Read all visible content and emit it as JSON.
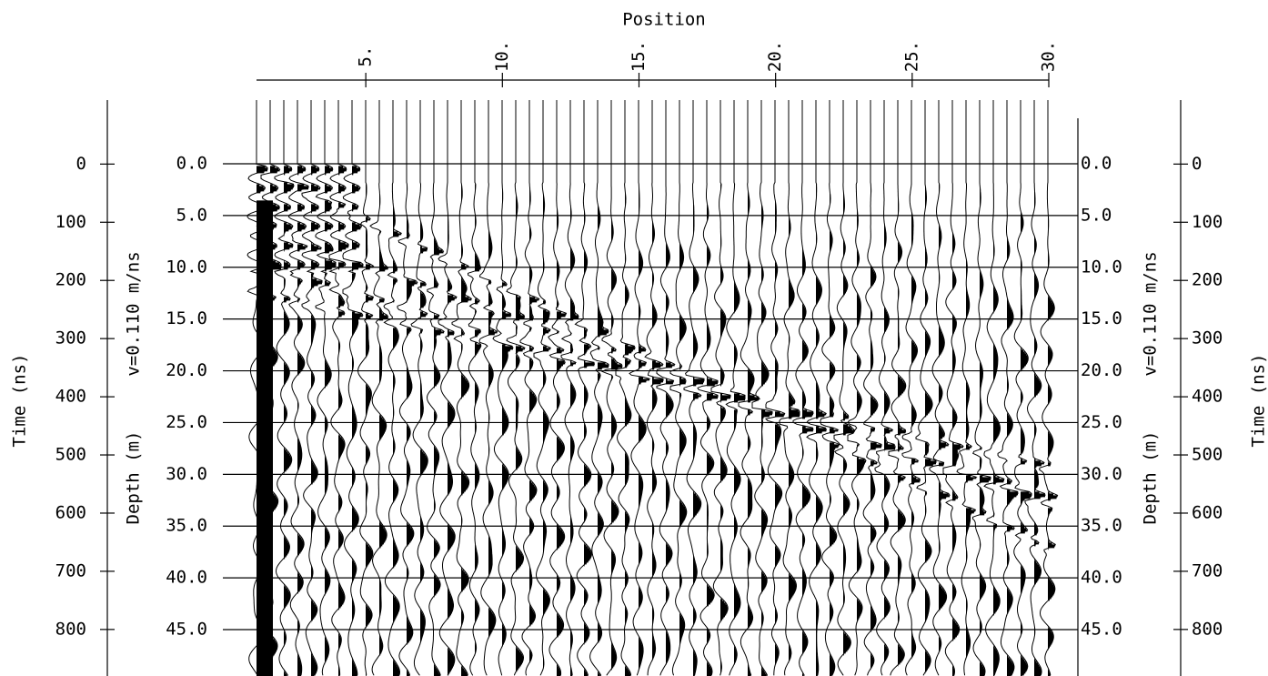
{
  "chart_data": {
    "type": "wiggle",
    "x_title": "Position",
    "xlim": [
      1,
      30
    ],
    "xticks": [
      {
        "value": 5,
        "label": "5."
      },
      {
        "value": 10,
        "label": "10."
      },
      {
        "value": 15,
        "label": "15."
      },
      {
        "value": 20,
        "label": "20."
      },
      {
        "value": 25,
        "label": "25."
      },
      {
        "value": 30,
        "label": "30."
      }
    ],
    "y_title": "Time (ns)",
    "ylim": [
      -110,
      880
    ],
    "yticks": [
      0,
      100,
      200,
      300,
      400,
      500,
      600,
      700,
      800
    ],
    "y2_title": "Depth (m)",
    "velocity_label": "v=0.110 m/ns",
    "y2lim": [
      -6.15,
      49.48
    ],
    "y2ticks": [
      {
        "value": 0,
        "label": "0.0"
      },
      {
        "value": 5,
        "label": "5.0"
      },
      {
        "value": 10,
        "label": "10.0"
      },
      {
        "value": 15,
        "label": "15.0"
      },
      {
        "value": 20,
        "label": "20.0"
      },
      {
        "value": 25,
        "label": "25.0"
      },
      {
        "value": 30,
        "label": "30.0"
      },
      {
        "value": 35,
        "label": "35.0"
      },
      {
        "value": 40,
        "label": "40.0"
      },
      {
        "value": 45,
        "label": "45.0"
      }
    ],
    "color": "#000000"
  }
}
